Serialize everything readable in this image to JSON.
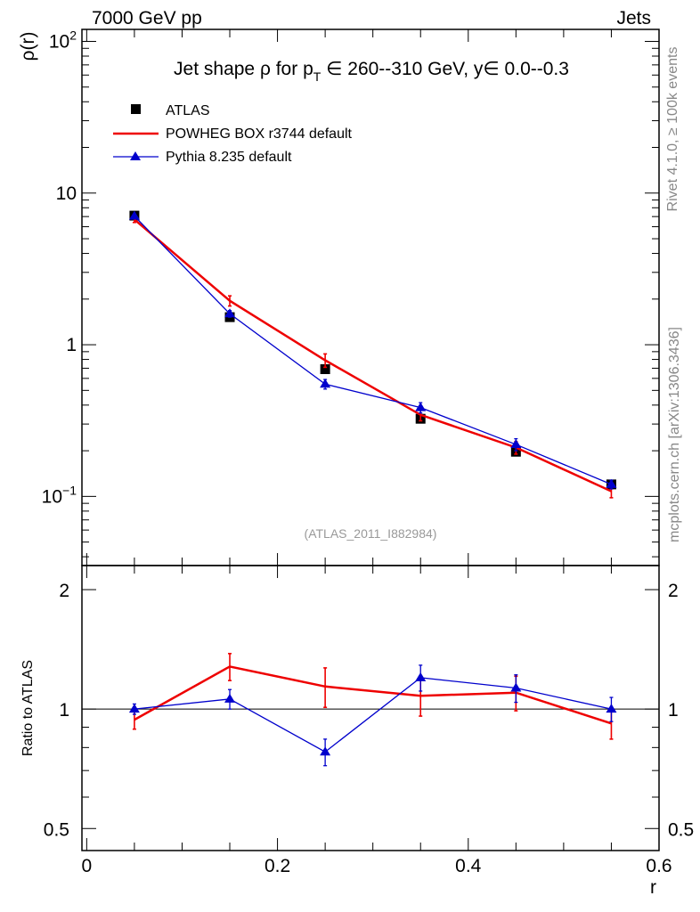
{
  "header": {
    "left": "7000 GeV pp",
    "right": "Jets"
  },
  "side_labels": {
    "rivet": "Rivet 4.1.0, ≥ 100k events",
    "mcplots": "mcplots.cern.ch [arXiv:1306.3436]"
  },
  "watermark": "(ATLAS_2011_I882984)",
  "colors": {
    "atlas": "#000000",
    "powheg": "#ee0000",
    "pythia": "#0000cc"
  },
  "chart_data": [
    {
      "type": "line",
      "panel": "main",
      "title": "Jet shape ρ for p_T ∈ 260--310 GeV, y∈ 0.0--0.3",
      "title_parts": {
        "prefix": "Jet shape ρ for p",
        "sub": "T",
        "suffix": " ∈ 260--310 GeV, y∈ 0.0--0.3"
      },
      "ylabel": "ρ(r)",
      "xlabel": "r",
      "yscale": "log",
      "xlim": [
        -0.005,
        0.6
      ],
      "ylim": [
        0.035,
        120
      ],
      "x_ticks": [
        0,
        0.2,
        0.4,
        0.6
      ],
      "x_tick_labels": [
        "0",
        "0.2",
        "0.4",
        "0.6"
      ],
      "y_ticks": [
        0.1,
        1,
        10,
        100
      ],
      "y_tick_labels": [
        {
          "base": "10",
          "exp": "−1"
        },
        {
          "base": "1",
          "exp": ""
        },
        {
          "base": "10",
          "exp": ""
        },
        {
          "base": "10",
          "exp": "2"
        }
      ],
      "legend": [
        "ATLAS",
        "POWHEG BOX r3744 default",
        "Pythia 8.235 default"
      ],
      "legend_position": "top-left",
      "x": [
        0.05,
        0.15,
        0.25,
        0.35,
        0.45,
        0.55
      ],
      "series": [
        {
          "name": "ATLAS",
          "style": "square-markers",
          "values": [
            7.1,
            1.52,
            0.69,
            0.325,
            0.197,
            0.12
          ],
          "errors": [
            0.2,
            0.05,
            0.03,
            0.012,
            0.008,
            0.005
          ]
        },
        {
          "name": "POWHEG BOX r3744 default",
          "style": "thick-line",
          "values": [
            6.7,
            1.95,
            0.79,
            0.345,
            0.21,
            0.108
          ],
          "errors": [
            0.3,
            0.15,
            0.08,
            0.03,
            0.02,
            0.01
          ]
        },
        {
          "name": "Pythia 8.235 default",
          "style": "triangle-line",
          "values": [
            7.05,
            1.6,
            0.55,
            0.385,
            0.22,
            0.12
          ],
          "errors": [
            0.2,
            0.08,
            0.04,
            0.03,
            0.02,
            0.008
          ]
        }
      ]
    },
    {
      "type": "line",
      "panel": "ratio",
      "ylabel": "Ratio to ATLAS",
      "ylim": [
        0.44,
        2.3
      ],
      "yscale": "log",
      "y_ticks": [
        0.5,
        1,
        2
      ],
      "y_tick_labels": [
        "0.5",
        "1",
        "2"
      ],
      "reference": 1,
      "x": [
        0.05,
        0.15,
        0.25,
        0.35,
        0.45,
        0.55
      ],
      "series": [
        {
          "name": "POWHEG BOX r3744 default",
          "values": [
            0.94,
            1.28,
            1.14,
            1.08,
            1.1,
            0.92
          ],
          "errors": [
            0.05,
            0.1,
            0.13,
            0.12,
            0.11,
            0.08
          ]
        },
        {
          "name": "Pythia 8.235 default",
          "values": [
            1.0,
            1.06,
            0.78,
            1.2,
            1.13,
            1.0
          ],
          "errors": [
            0.03,
            0.06,
            0.06,
            0.09,
            0.09,
            0.07
          ]
        }
      ]
    }
  ]
}
